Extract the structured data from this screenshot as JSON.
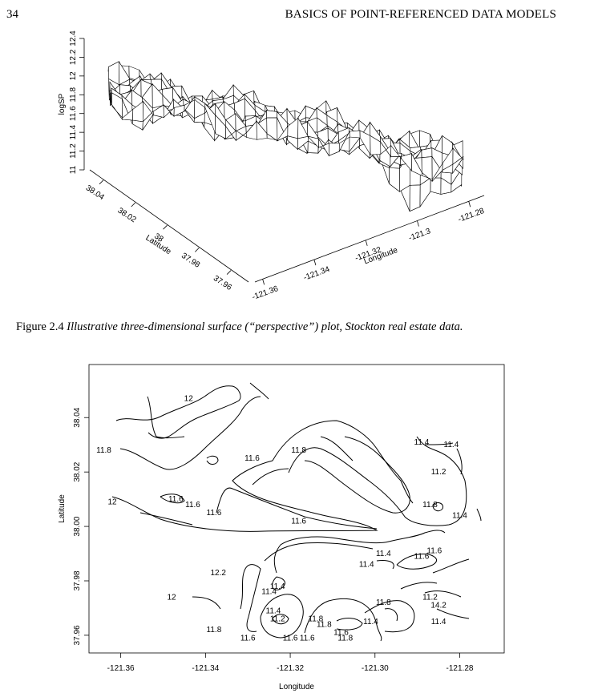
{
  "header": {
    "page_number": "34",
    "running_title": "BASICS OF POINT-REFERENCED DATA MODELS"
  },
  "figure_caption": {
    "label": "Figure 2.4",
    "text": "Illustrative three-dimensional surface (“perspective”) plot, Stockton real estate data."
  },
  "perspective_plot": {
    "z_label": "logSP",
    "z_ticks": [
      "11",
      "11.2",
      "11.4",
      "11.6",
      "11.8",
      "12",
      "12.2",
      "12.4"
    ],
    "y_label": "Latitude",
    "y_ticks": [
      "38.04",
      "38.02",
      "38",
      "37.98",
      "37.96"
    ],
    "x_label": "Longitude",
    "x_ticks": [
      "-121.36",
      "-121.34",
      "-121.32",
      "-121.3",
      "-121.28"
    ]
  },
  "chart_data": [
    {
      "type": "contour",
      "xlabel": "Longitude",
      "ylabel": "Latitude",
      "x_ticks": [
        "-121.36",
        "-121.34",
        "-121.32",
        "-121.30",
        "-121.28"
      ],
      "y_ticks": [
        "37.96",
        "37.98",
        "38.00",
        "38.02",
        "38.04"
      ],
      "contour_labels": [
        {
          "text": "12",
          "x": -121.344,
          "y": 38.047
        },
        {
          "text": "11.8",
          "x": -121.364,
          "y": 38.028
        },
        {
          "text": "11.6",
          "x": -121.329,
          "y": 38.025
        },
        {
          "text": "11.8",
          "x": -121.318,
          "y": 38.028
        },
        {
          "text": "11.4",
          "x": -121.289,
          "y": 38.031
        },
        {
          "text": "11.4",
          "x": -121.282,
          "y": 38.03
        },
        {
          "text": "11.2",
          "x": -121.285,
          "y": 38.02
        },
        {
          "text": "11.6",
          "x": -121.347,
          "y": 38.01
        },
        {
          "text": "11.6",
          "x": -121.343,
          "y": 38.008
        },
        {
          "text": "11.6",
          "x": -121.338,
          "y": 38.005
        },
        {
          "text": "12",
          "x": -121.362,
          "y": 38.009
        },
        {
          "text": "11.6",
          "x": -121.318,
          "y": 38.002
        },
        {
          "text": "11.8",
          "x": -121.287,
          "y": 38.008
        },
        {
          "text": "11.4",
          "x": -121.28,
          "y": 38.004
        },
        {
          "text": "11.4",
          "x": -121.298,
          "y": 37.99
        },
        {
          "text": "11.4",
          "x": -121.302,
          "y": 37.986
        },
        {
          "text": "11.6",
          "x": -121.286,
          "y": 37.991
        },
        {
          "text": "11.6",
          "x": -121.289,
          "y": 37.989
        },
        {
          "text": "12.2",
          "x": -121.337,
          "y": 37.983
        },
        {
          "text": "11.4",
          "x": -121.323,
          "y": 37.978
        },
        {
          "text": "11.4",
          "x": -121.325,
          "y": 37.976
        },
        {
          "text": "12",
          "x": -121.348,
          "y": 37.974
        },
        {
          "text": "11.8",
          "x": -121.298,
          "y": 37.972
        },
        {
          "text": "11.2",
          "x": -121.287,
          "y": 37.974
        },
        {
          "text": "14.2",
          "x": -121.285,
          "y": 37.971
        },
        {
          "text": "11.4",
          "x": -121.324,
          "y": 37.969
        },
        {
          "text": "11.2",
          "x": -121.323,
          "y": 37.966
        },
        {
          "text": "11.8",
          "x": -121.314,
          "y": 37.966
        },
        {
          "text": "11.8",
          "x": -121.312,
          "y": 37.964
        },
        {
          "text": "11.4",
          "x": -121.301,
          "y": 37.965
        },
        {
          "text": "11.4",
          "x": -121.285,
          "y": 37.965
        },
        {
          "text": "11.8",
          "x": -121.338,
          "y": 37.962
        },
        {
          "text": "11.6",
          "x": -121.33,
          "y": 37.959
        },
        {
          "text": "11.6",
          "x": -121.32,
          "y": 37.959
        },
        {
          "text": "11.6",
          "x": -121.316,
          "y": 37.959
        },
        {
          "text": "11.6",
          "x": -121.308,
          "y": 37.961
        },
        {
          "text": "11.8",
          "x": -121.307,
          "y": 37.959
        }
      ]
    }
  ]
}
